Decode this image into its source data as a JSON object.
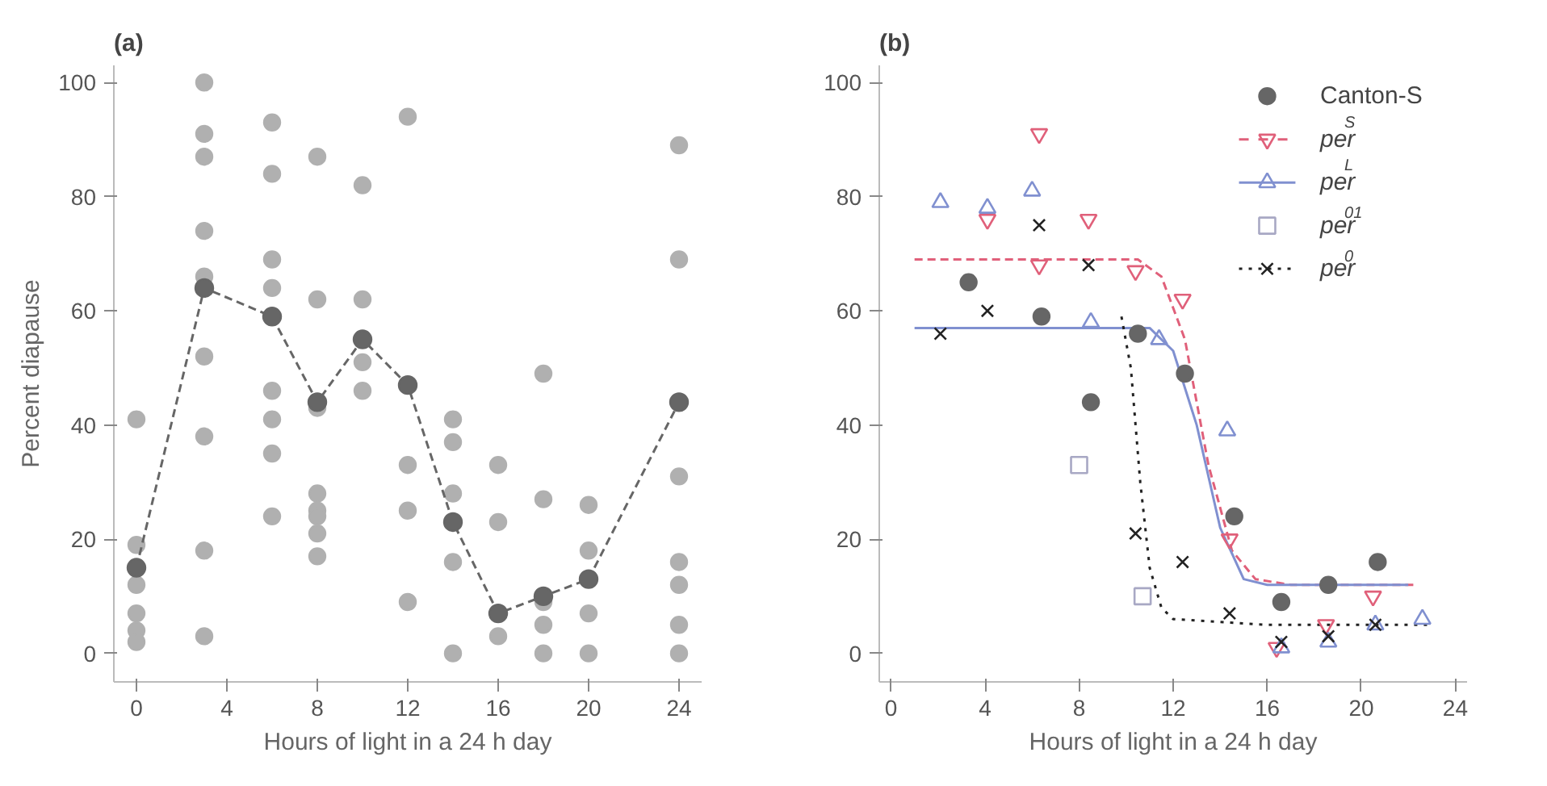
{
  "chart_data": [
    {
      "type": "scatter",
      "title": "(a)",
      "xlabel": "Hours of light in a 24 h day",
      "ylabel": "Percent diapause",
      "xlim": [
        -1,
        25
      ],
      "ylim": [
        -5,
        103
      ],
      "xticks": [
        0,
        4,
        8,
        12,
        16,
        20,
        24
      ],
      "yticks": [
        0,
        20,
        40,
        60,
        80,
        100
      ],
      "grid": false,
      "legend": false,
      "series": [
        {
          "marker": "circle",
          "color": "#b0b0b0",
          "x": [
            0,
            0,
            0,
            0,
            0,
            0,
            3,
            3,
            3,
            3,
            3,
            3,
            3,
            3,
            3,
            6,
            6,
            6,
            6,
            6,
            6,
            6,
            6,
            8,
            8,
            8,
            8,
            8,
            8,
            8,
            8,
            10,
            10,
            10,
            10,
            12,
            12,
            12,
            12,
            14,
            14,
            14,
            14,
            14,
            16,
            16,
            16,
            18,
            18,
            18,
            18,
            18,
            20,
            20,
            20,
            20,
            24,
            24,
            24,
            24,
            24,
            24,
            24
          ],
          "values": [
            41,
            19,
            12,
            7,
            4,
            2,
            100,
            91,
            87,
            74,
            66,
            52,
            38,
            18,
            3,
            93,
            84,
            69,
            64,
            46,
            41,
            35,
            24,
            87,
            62,
            43,
            28,
            25,
            21,
            17,
            24,
            82,
            62,
            51,
            46,
            94,
            33,
            25,
            9,
            41,
            37,
            28,
            16,
            0,
            33,
            23,
            3,
            49,
            27,
            9,
            5,
            0,
            26,
            18,
            7,
            0,
            89,
            69,
            31,
            16,
            12,
            5,
            0
          ]
        },
        {
          "type": "line",
          "marker": "circle",
          "line_style": "dashed",
          "color": "#666666",
          "x": [
            0,
            3,
            6,
            8,
            10,
            12,
            14,
            16,
            18,
            20,
            24
          ],
          "values": [
            15,
            64,
            59,
            44,
            55,
            47,
            23,
            7,
            10,
            13,
            44
          ]
        }
      ]
    },
    {
      "type": "scatter",
      "title": "(b)",
      "xlabel": "Hours of light in a 24 h day",
      "xlim": [
        -0.5,
        24.5
      ],
      "ylim": [
        -5,
        103
      ],
      "xticks": [
        0,
        4,
        8,
        12,
        16,
        20,
        24
      ],
      "yticks": [
        0,
        20,
        40,
        60,
        80,
        100
      ],
      "grid": false,
      "legend": "top right",
      "series": [
        {
          "type": "line",
          "line_style": "dashed",
          "marker": "none",
          "color": "#e0607a",
          "x": [
            1,
            10.5,
            11.5,
            12.5,
            13.5,
            14.5,
            15.5,
            17,
            22.4
          ],
          "values": [
            69,
            69,
            66,
            55,
            33,
            18,
            13,
            12,
            12
          ]
        },
        {
          "type": "line",
          "line_style": "solid",
          "marker": "none",
          "color": "#8090d0",
          "x": [
            1,
            11,
            12,
            13,
            14,
            15,
            16,
            22
          ],
          "values": [
            57,
            57,
            53,
            40,
            22,
            13,
            12,
            12
          ]
        },
        {
          "type": "line",
          "line_style": "dotted",
          "marker": "none",
          "color": "#222222",
          "x": [
            9.8,
            10.2,
            10.6,
            11,
            11.5,
            12,
            16,
            23
          ],
          "values": [
            59,
            50,
            30,
            15,
            8,
            6,
            5,
            5
          ]
        },
        {
          "name": "Canton-S",
          "marker": "circle",
          "color": "#666666",
          "x": [
            3.3,
            6.4,
            8.5,
            10.5,
            12.5,
            14.6,
            16.6,
            18.6,
            20.7
          ],
          "values": [
            65,
            59,
            44,
            56,
            49,
            24,
            9,
            12,
            16
          ]
        },
        {
          "name": "per$^{S}$",
          "marker": "triangle_down",
          "color": "#e0607a",
          "x": [
            4.1,
            6.3,
            6.3,
            8.4,
            10.4,
            12.4,
            14.4,
            16.4,
            18.5,
            20.5
          ],
          "values": [
            76,
            91,
            68,
            76,
            67,
            62,
            20,
            1,
            5,
            10
          ]
        },
        {
          "name": "per$^{L}$",
          "marker": "triangle",
          "color": "#8090d0",
          "x": [
            2.1,
            4.1,
            6,
            8.5,
            11.4,
            14.3,
            16.6,
            18.6,
            20.6,
            22.6
          ],
          "values": [
            79,
            78,
            81,
            58,
            55,
            39,
            1,
            2,
            5,
            6
          ]
        },
        {
          "name": "per$^{01}$",
          "marker": "square",
          "color": "#a8a8c4",
          "x": [
            8,
            10.7
          ],
          "values": [
            33,
            10
          ]
        },
        {
          "name": "per$^{0}$",
          "marker": "cross",
          "color": "#222222",
          "x": [
            2.1,
            4.1,
            6.3,
            8.4,
            10.4,
            12.4,
            14.4,
            16.6,
            18.6,
            20.6
          ],
          "values": [
            56,
            60,
            75,
            68,
            21,
            16,
            7,
            2,
            3,
            5
          ]
        }
      ]
    }
  ]
}
